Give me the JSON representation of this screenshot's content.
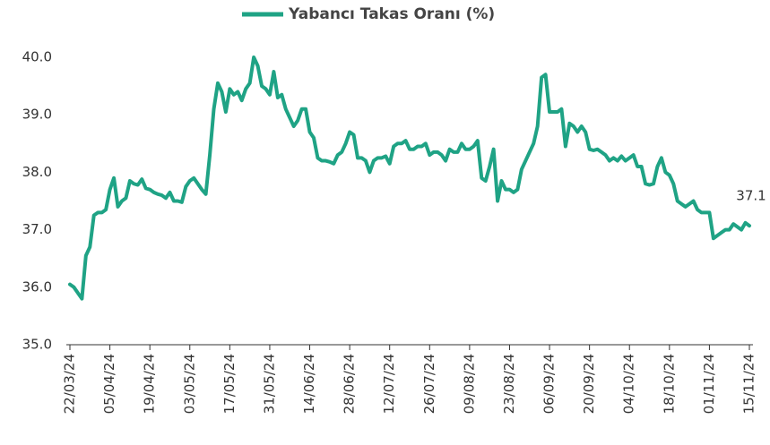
{
  "chart_data": {
    "type": "line",
    "legend": "top",
    "categories": [
      "22/03/24",
      null,
      null,
      null,
      null,
      null,
      null,
      null,
      null,
      null,
      "05/04/24",
      null,
      null,
      null,
      null,
      null,
      null,
      null,
      null,
      null,
      "19/04/24",
      null,
      null,
      null,
      null,
      null,
      null,
      null,
      null,
      null,
      "03/05/24",
      null,
      null,
      null,
      null,
      null,
      null,
      null,
      null,
      null,
      "17/05/24",
      null,
      null,
      null,
      null,
      null,
      null,
      null,
      null,
      null,
      "31/05/24",
      null,
      null,
      null,
      null,
      null,
      null,
      null,
      null,
      null,
      "14/06/24",
      null,
      null,
      null,
      null,
      null,
      null,
      null,
      null,
      null,
      "28/06/24",
      null,
      null,
      null,
      null,
      null,
      null,
      null,
      null,
      null,
      "12/07/24",
      null,
      null,
      null,
      null,
      null,
      null,
      null,
      null,
      null,
      "26/07/24",
      null,
      null,
      null,
      null,
      null,
      null,
      null,
      null,
      null,
      "09/08/24",
      null,
      null,
      null,
      null,
      null,
      null,
      null,
      null,
      null,
      "23/08/24",
      null,
      null,
      null,
      null,
      null,
      null,
      null,
      null,
      null,
      "06/09/24",
      null,
      null,
      null,
      null,
      null,
      null,
      null,
      null,
      null,
      "20/09/24",
      null,
      null,
      null,
      null,
      null,
      null,
      null,
      null,
      null,
      "04/10/24",
      null,
      null,
      null,
      null,
      null,
      null,
      null,
      null,
      null,
      "18/10/24",
      null,
      null,
      null,
      null,
      null,
      null,
      null,
      null,
      null,
      "01/11/24",
      null,
      null,
      null,
      null,
      null,
      null,
      null,
      null,
      null,
      "15/11/24"
    ],
    "series": [
      {
        "name": "Yabancı Takas Oranı (%)",
        "color": "#1fa385",
        "values": [
          36.05,
          36.0,
          35.9,
          35.8,
          36.55,
          36.7,
          37.25,
          37.3,
          37.3,
          37.35,
          37.7,
          37.9,
          37.4,
          37.5,
          37.55,
          37.85,
          37.8,
          37.78,
          37.88,
          37.72,
          37.7,
          37.65,
          37.62,
          37.6,
          37.55,
          37.65,
          37.5,
          37.5,
          37.48,
          37.75,
          37.85,
          37.9,
          37.8,
          37.7,
          37.62,
          38.3,
          39.1,
          39.55,
          39.4,
          39.05,
          39.45,
          39.35,
          39.4,
          39.25,
          39.45,
          39.55,
          40.0,
          39.85,
          39.5,
          39.45,
          39.35,
          39.75,
          39.3,
          39.35,
          39.1,
          38.95,
          38.8,
          38.9,
          39.1,
          39.1,
          38.7,
          38.6,
          38.25,
          38.2,
          38.2,
          38.18,
          38.15,
          38.3,
          38.35,
          38.5,
          38.7,
          38.65,
          38.25,
          38.25,
          38.2,
          38.0,
          38.2,
          38.25,
          38.25,
          38.28,
          38.15,
          38.45,
          38.5,
          38.5,
          38.55,
          38.4,
          38.4,
          38.45,
          38.45,
          38.5,
          38.3,
          38.35,
          38.35,
          38.3,
          38.2,
          38.4,
          38.35,
          38.35,
          38.5,
          38.4,
          38.4,
          38.45,
          38.55,
          37.9,
          37.85,
          38.1,
          38.4,
          37.5,
          37.85,
          37.7,
          37.7,
          37.65,
          37.7,
          38.05,
          38.2,
          38.35,
          38.5,
          38.8,
          39.65,
          39.7,
          39.05,
          39.05,
          39.05,
          39.1,
          38.45,
          38.85,
          38.8,
          38.7,
          38.8,
          38.7,
          38.4,
          38.38,
          38.4,
          38.35,
          38.3,
          38.2,
          38.25,
          38.2,
          38.28,
          38.2,
          38.25,
          38.3,
          38.1,
          38.1,
          37.8,
          37.78,
          37.8,
          38.1,
          38.25,
          38.0,
          37.95,
          37.8,
          37.5,
          37.45,
          37.4,
          37.45,
          37.5,
          37.35,
          37.3,
          37.3,
          37.3,
          36.85,
          36.9,
          36.95,
          37.0,
          37.0,
          37.1,
          37.05,
          37.0,
          37.12,
          37.07
        ],
        "value_labels": [
          null,
          null,
          null,
          null,
          null,
          null,
          null,
          null,
          null,
          null,
          null,
          null,
          null,
          null,
          null,
          null,
          null,
          null,
          null,
          null,
          null,
          null,
          null,
          null,
          null,
          null,
          null,
          null,
          null,
          null,
          null,
          null,
          null,
          null,
          null,
          null,
          null,
          null,
          null,
          null,
          null,
          null,
          null,
          null,
          null,
          null,
          null,
          null,
          null,
          null,
          null,
          null,
          null,
          null,
          null,
          null,
          null,
          null,
          null,
          null,
          null,
          null,
          null,
          null,
          null,
          null,
          null,
          null,
          null,
          null,
          null,
          null,
          null,
          null,
          null,
          null,
          null,
          null,
          null,
          null,
          null,
          null,
          null,
          null,
          null,
          null,
          null,
          null,
          null,
          null,
          null,
          null,
          null,
          null,
          null,
          null,
          null,
          null,
          null,
          null,
          null,
          null,
          null,
          null,
          null,
          null,
          null,
          null,
          null,
          null,
          null,
          null,
          null,
          null,
          null,
          null,
          null,
          null,
          null,
          null,
          null,
          null,
          null,
          null,
          null,
          null,
          null,
          null,
          null,
          null,
          null,
          null,
          null,
          null,
          null,
          null,
          null,
          null,
          null,
          null,
          null,
          null,
          null,
          null,
          null,
          null,
          null,
          null,
          null,
          null,
          null,
          null,
          null,
          null,
          null,
          null,
          null,
          null,
          null,
          null,
          null,
          null,
          null,
          null,
          null,
          null,
          null,
          null,
          null,
          null,
          "37.1"
        ]
      }
    ],
    "ylim": [
      35,
      40
    ],
    "yticks": [
      {
        "value": 35,
        "label": "35.0"
      },
      {
        "value": 36,
        "label": "36.0"
      },
      {
        "value": 37,
        "label": "37.0"
      },
      {
        "value": 38,
        "label": "38.0"
      },
      {
        "value": 39,
        "label": "39.0"
      },
      {
        "value": 40,
        "label": "40.0"
      }
    ],
    "grid": false
  }
}
